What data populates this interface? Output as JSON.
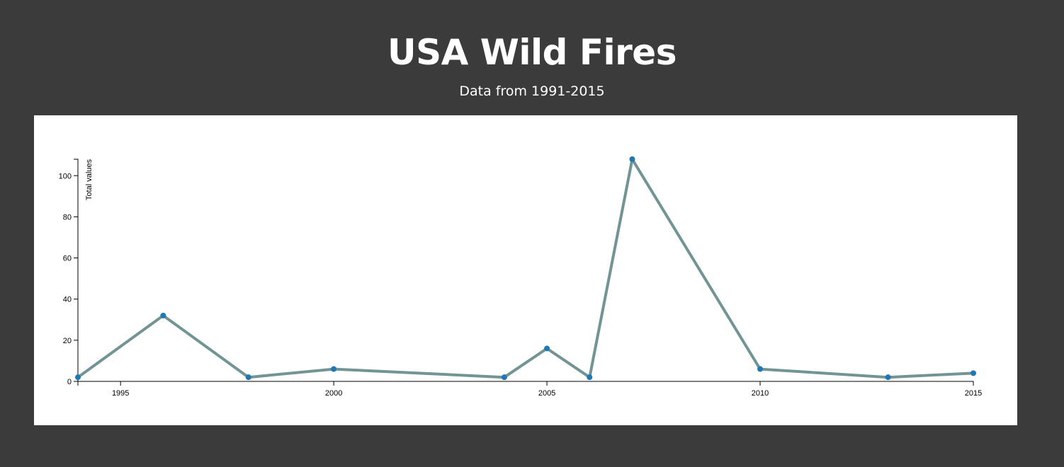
{
  "header": {
    "title": "USA Wild Fires",
    "subtitle": "Data from 1991-2015"
  },
  "chart_data": {
    "type": "line",
    "x": [
      1994,
      1996,
      1998,
      2000,
      2004,
      2005,
      2006,
      2007,
      2010,
      2013,
      2015
    ],
    "series": [
      {
        "values": [
          2,
          32,
          2,
          6,
          2,
          16,
          2,
          108,
          6,
          2,
          4
        ]
      }
    ],
    "xlabel": "",
    "ylabel": "Total values",
    "xlim": [
      1994,
      2015
    ],
    "ylim": [
      0,
      108
    ],
    "x_ticks": [
      1995,
      2000,
      2005,
      2010,
      2015
    ],
    "y_ticks": [
      0,
      20,
      40,
      60,
      80,
      100
    ],
    "grid": false,
    "legend": "none",
    "colors": {
      "line": "#739494",
      "point": "#1f77b4",
      "axis": "#000000"
    }
  }
}
